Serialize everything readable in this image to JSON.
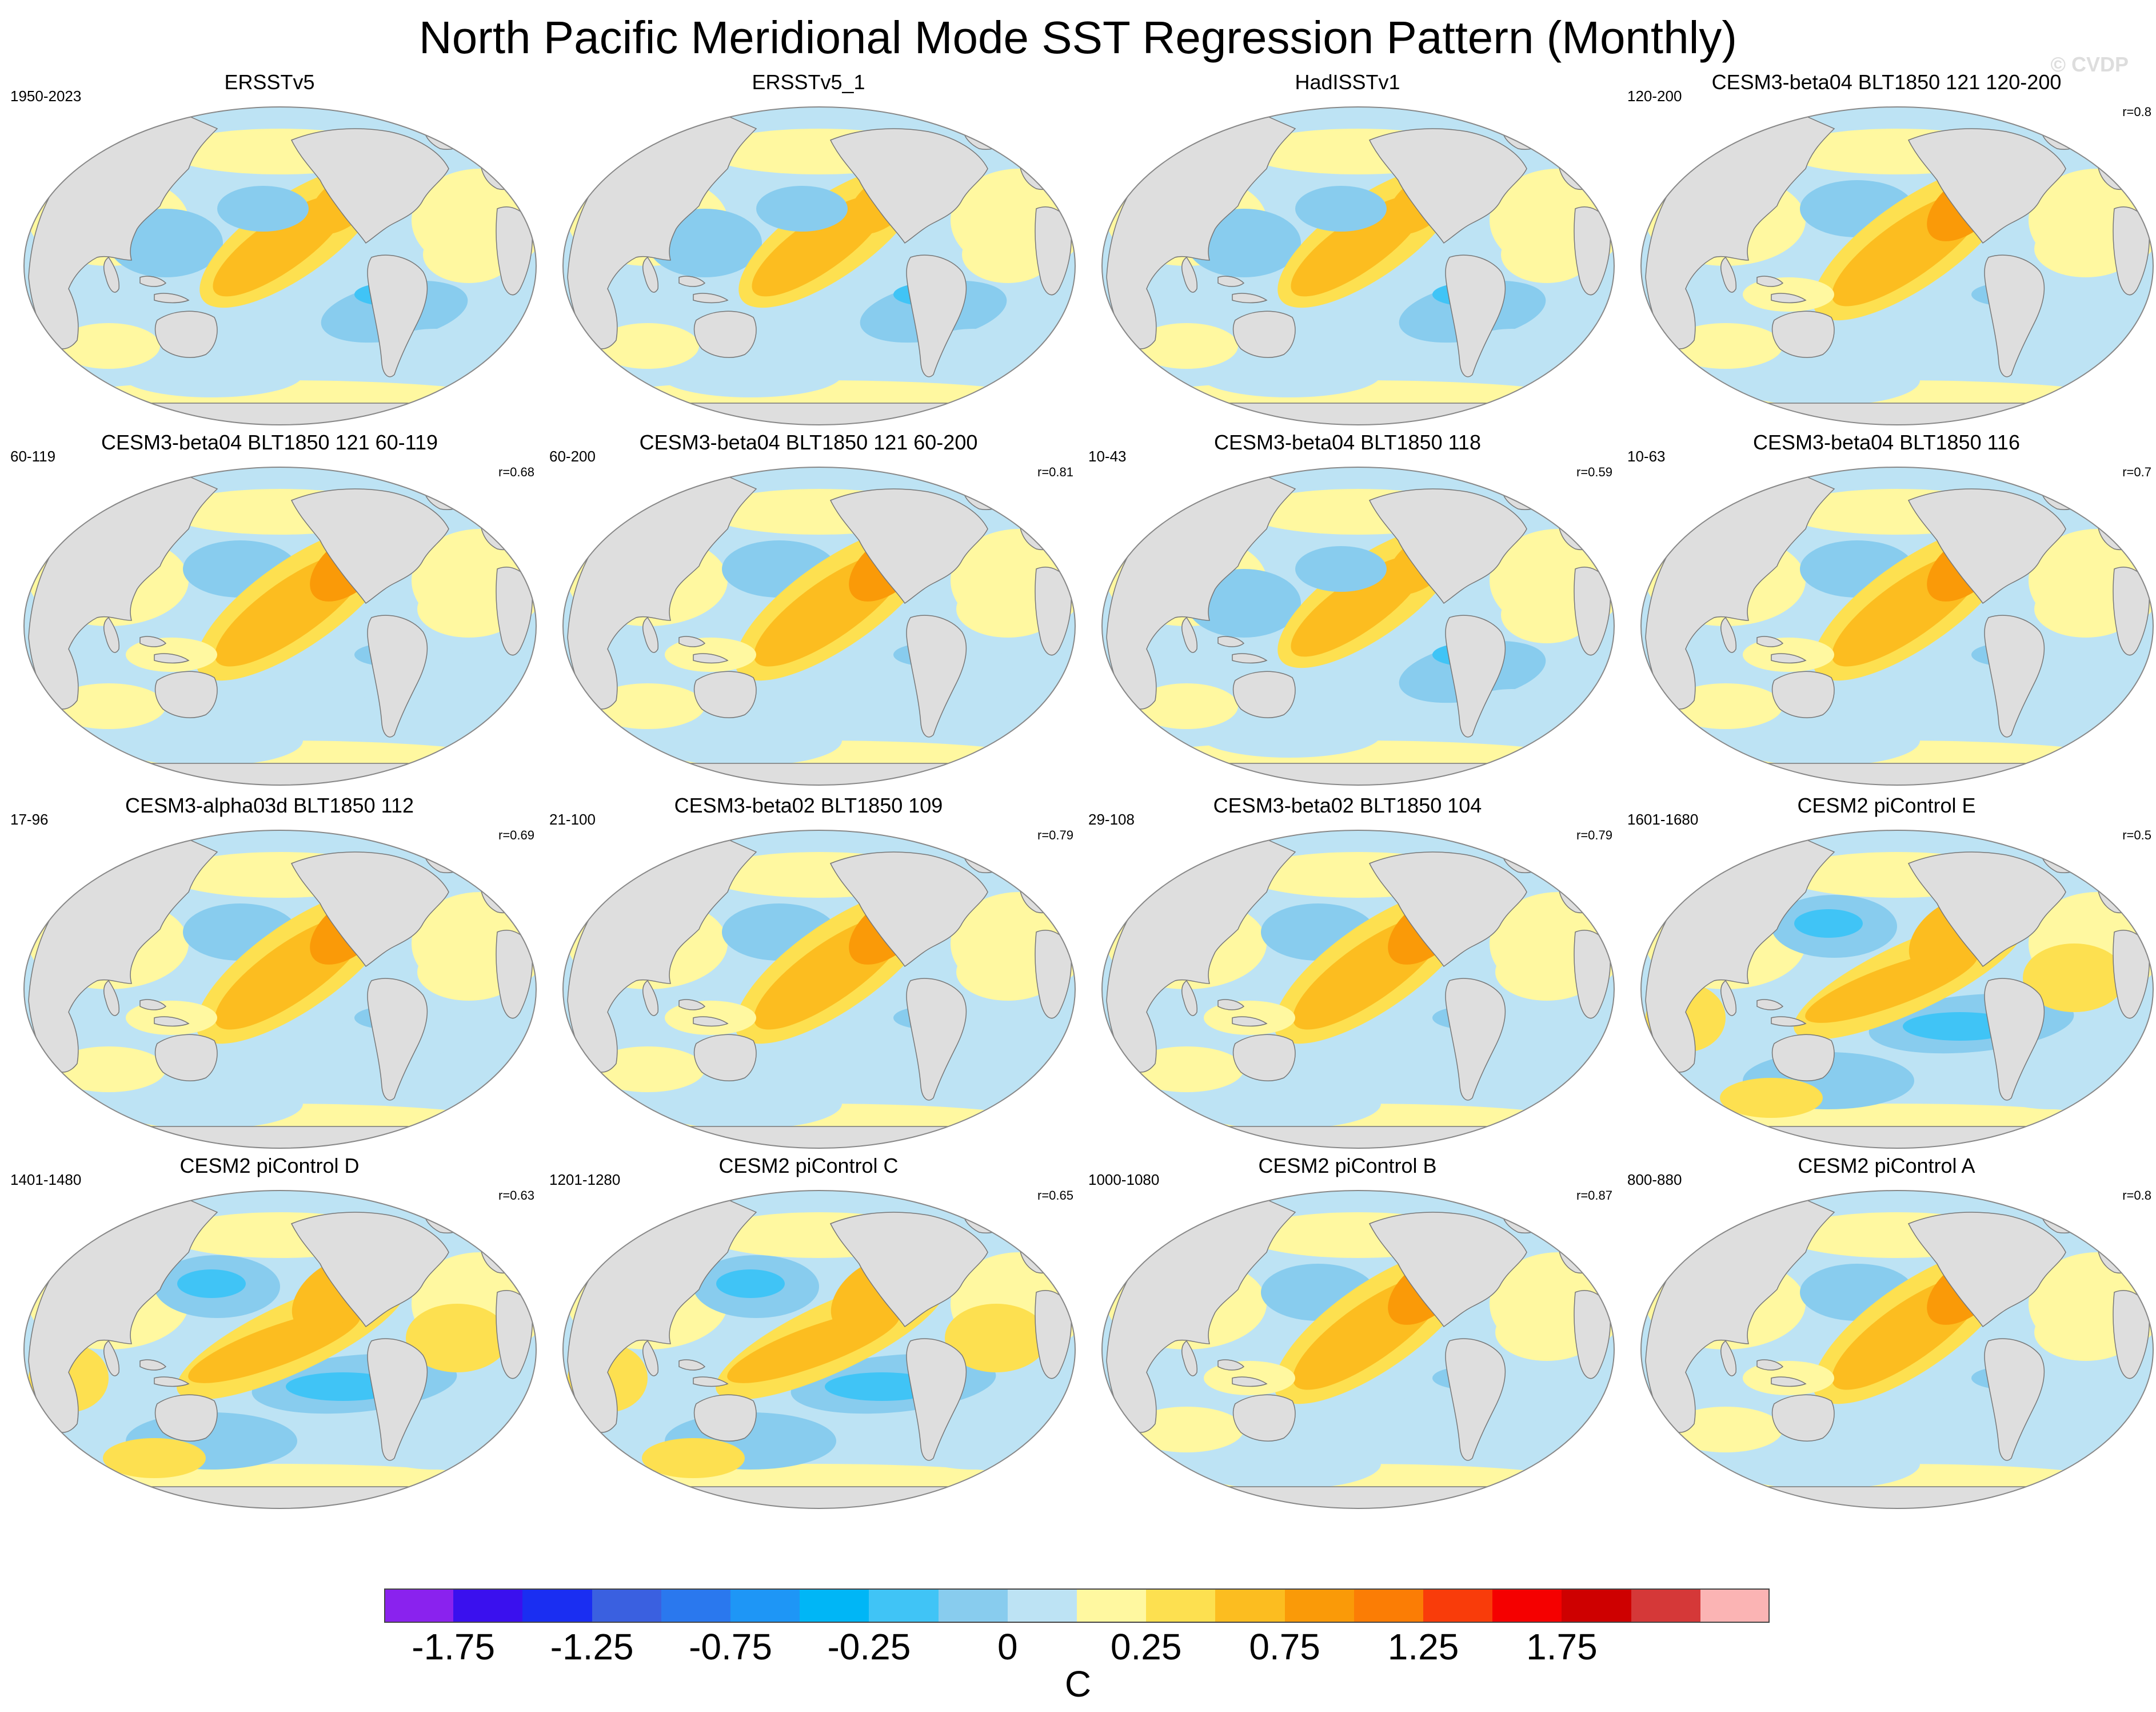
{
  "title": "North Pacific Meridional Mode SST Regression Pattern (Monthly)",
  "watermark": "© CVDP",
  "panels": [
    {
      "title": "ERSSTv5",
      "left": "1950-2023",
      "right": "",
      "pattern": 0
    },
    {
      "title": "ERSSTv5_1",
      "left": "",
      "right": "",
      "pattern": 0
    },
    {
      "title": "HadISSTv1",
      "left": "",
      "right": "",
      "pattern": 0
    },
    {
      "title": "CESM3-beta04 BLT1850 121 120-200",
      "left": "120-200",
      "right": "r=0.8",
      "pattern": 1
    },
    {
      "title": "CESM3-beta04 BLT1850 121 60-119",
      "left": "60-119",
      "right": "r=0.68",
      "pattern": 1
    },
    {
      "title": "CESM3-beta04 BLT1850 121 60-200",
      "left": "60-200",
      "right": "r=0.81",
      "pattern": 1
    },
    {
      "title": "CESM3-beta04 BLT1850 118",
      "left": "10-43",
      "right": "r=0.59",
      "pattern": 0
    },
    {
      "title": "CESM3-beta04 BLT1850 116",
      "left": "10-63",
      "right": "r=0.7",
      "pattern": 1
    },
    {
      "title": "CESM3-alpha03d BLT1850 112",
      "left": "17-96",
      "right": "r=0.69",
      "pattern": 1
    },
    {
      "title": "CESM3-beta02 BLT1850 109",
      "left": "21-100",
      "right": "r=0.79",
      "pattern": 1
    },
    {
      "title": "CESM3-beta02 BLT1850 104",
      "left": "29-108",
      "right": "r=0.79",
      "pattern": 1
    },
    {
      "title": "CESM2 piControl E",
      "left": "1601-1680",
      "right": "r=0.5",
      "pattern": 2
    },
    {
      "title": "CESM2 piControl D",
      "left": "1401-1480",
      "right": "r=0.63",
      "pattern": 2
    },
    {
      "title": "CESM2 piControl C",
      "left": "1201-1280",
      "right": "r=0.65",
      "pattern": 2
    },
    {
      "title": "CESM2 piControl B",
      "left": "1000-1080",
      "right": "r=0.87",
      "pattern": 1
    },
    {
      "title": "CESM2 piControl A",
      "left": "800-880",
      "right": "r=0.8",
      "pattern": 1
    }
  ],
  "colorbar": {
    "colors": [
      "#8a22ee",
      "#3a10ee",
      "#1a2ef2",
      "#3a60e0",
      "#2a78ee",
      "#1e96f6",
      "#00b6f6",
      "#40c4f6",
      "#88ccee",
      "#bde3f4",
      "#fff8a0",
      "#fde050",
      "#fcbd20",
      "#fa9a08",
      "#fb7d05",
      "#f93c0a",
      "#f50000",
      "#ce0000",
      "#d53838",
      "#fbb4b4"
    ],
    "labels": [
      "-1.75",
      "-1.25",
      "-0.75",
      "-0.25",
      "0",
      "0.25",
      "0.75",
      "1.25",
      "1.75"
    ],
    "label_boundaries": [
      2,
      4,
      6,
      8,
      10,
      12,
      14,
      16,
      18
    ],
    "unit": "C"
  },
  "colors": {
    "land": "#dedede",
    "coast": "#777777",
    "neg_light": "#bde3f4",
    "neg_mid": "#88ccee",
    "neg_strong": "#40c4f6",
    "pos_light": "#fff8a0",
    "pos_mid": "#fde050",
    "pos_strong": "#fcbd20",
    "pos_vstrong": "#fa9a08"
  }
}
